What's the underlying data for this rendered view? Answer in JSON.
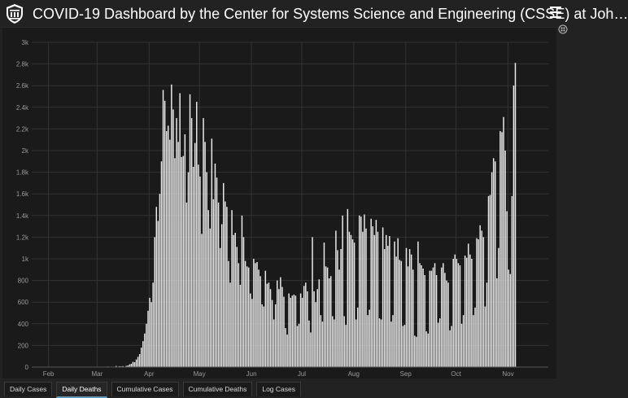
{
  "header": {
    "title": "COVID-19 Dashboard by the Center for Systems Science and Engineering (CSSE) at Joh…",
    "logo_icon": "university-seal-icon",
    "menu_icon": "hamburger-menu-icon"
  },
  "colors": {
    "background": "#222222",
    "plot_background": "#1a1a1a",
    "bars": "#ebebeb",
    "grid": "#333333",
    "text": "#ffffff",
    "axis_text": "#9a9a9a",
    "active_tab_accent": "#3aa3e3"
  },
  "tabs": [
    {
      "label": "Daily Cases",
      "active": false
    },
    {
      "label": "Daily Deaths",
      "active": true
    },
    {
      "label": "Cumulative Cases",
      "active": false
    },
    {
      "label": "Cumulative Deaths",
      "active": false
    },
    {
      "label": "Log Cases",
      "active": false
    }
  ],
  "chart_data": {
    "type": "bar",
    "title": "",
    "xlabel": "",
    "ylabel": "",
    "ylim": [
      0,
      3000
    ],
    "yticks": [
      0,
      200,
      400,
      600,
      800,
      1000,
      1200,
      1400,
      1600,
      1800,
      2000,
      2200,
      2400,
      2600,
      2800,
      3000
    ],
    "ytick_labels": [
      "0",
      "200",
      "400",
      "600",
      "800",
      "1k",
      "1.2k",
      "1.4k",
      "1.6k",
      "1.8k",
      "2k",
      "2.2k",
      "2.4k",
      "2.6k",
      "2.8k",
      "3k"
    ],
    "x_start": "2020-01-22",
    "x_end": "2020-11-24",
    "month_labels": [
      {
        "label": "Feb",
        "date": "2020-02-01"
      },
      {
        "label": "Mar",
        "date": "2020-03-01"
      },
      {
        "label": "Apr",
        "date": "2020-04-01"
      },
      {
        "label": "May",
        "date": "2020-05-01"
      },
      {
        "label": "Jun",
        "date": "2020-06-01"
      },
      {
        "label": "Jul",
        "date": "2020-07-01"
      },
      {
        "label": "Aug",
        "date": "2020-08-01"
      },
      {
        "label": "Sep",
        "date": "2020-09-01"
      },
      {
        "label": "Oct",
        "date": "2020-10-01"
      },
      {
        "label": "Nov",
        "date": "2020-11-01"
      }
    ],
    "grid": true,
    "series": [
      {
        "values": [
          0,
          0,
          0,
          0,
          0,
          0,
          0,
          0,
          0,
          0,
          0,
          0,
          0,
          0,
          0,
          0,
          0,
          0,
          0,
          0,
          0,
          0,
          0,
          0,
          0,
          0,
          0,
          0,
          0,
          0,
          0,
          0,
          0,
          0,
          0,
          0,
          1,
          0,
          0,
          0,
          0,
          0,
          0,
          0,
          0,
          5,
          2,
          4,
          2,
          4,
          10,
          2,
          8,
          6,
          9,
          2,
          11,
          15,
          25,
          30,
          48,
          45,
          70,
          95,
          120,
          180,
          240,
          310,
          400,
          520,
          640,
          600,
          780,
          1200,
          1480,
          1350,
          1600,
          1900,
          2560,
          2460,
          2180,
          2230,
          2100,
          2610,
          2380,
          1930,
          2300,
          2080,
          2530,
          1940,
          1950,
          2150,
          1520,
          1800,
          2520,
          2300,
          1850,
          2070,
          2450,
          1870,
          1760,
          1230,
          2300,
          2080,
          1800,
          1450,
          1280,
          2110,
          1550,
          1880,
          1750,
          1520,
          1100,
          1320,
          1700,
          1530,
          1480,
          980,
          780,
          1450,
          1220,
          1240,
          1110,
          960,
          760,
          1400,
          1200,
          980,
          930,
          920,
          680,
          630,
          1000,
          960,
          970,
          900,
          840,
          580,
          560,
          890,
          770,
          780,
          720,
          620,
          440,
          580,
          800,
          720,
          830,
          740,
          650,
          360,
          300,
          680,
          640,
          660,
          670,
          660,
          380,
          400,
          680,
          640,
          750,
          780,
          700,
          430,
          320,
          1200,
          700,
          600,
          720,
          810,
          480,
          420,
          1150,
          930,
          920,
          820,
          840,
          470,
          440,
          1260,
          1080,
          900,
          1090,
          1400,
          470,
          390,
          1460,
          1250,
          1220,
          1180,
          1150,
          440,
          550,
          1400,
          1390,
          1250,
          1410,
          1280,
          480,
          530,
          1370,
          1300,
          1220,
          1360,
          1250,
          450,
          440,
          1290,
          1090,
          1220,
          1120,
          1210,
          420,
          480,
          1160,
          1020,
          1190,
          990,
          980,
          380,
          390,
          1100,
          930,
          1090,
          1040,
          900,
          290,
          280,
          1160,
          960,
          940,
          910,
          850,
          330,
          310,
          890,
          890,
          920,
          960,
          850,
          410,
          450,
          920,
          960,
          870,
          800,
          780,
          340,
          380,
          1000,
          1040,
          1000,
          960,
          940,
          400,
          480,
          1030,
          1010,
          1140,
          1040,
          1000,
          480,
          550,
          1190,
          1180,
          1310,
          1260,
          1200,
          560,
          780,
          1580,
          1590,
          1800,
          1930,
          1900,
          820,
          1100,
          2180,
          2170,
          2310,
          2000,
          1440,
          900,
          860,
          1580,
          2600,
          2810
        ]
      }
    ]
  }
}
